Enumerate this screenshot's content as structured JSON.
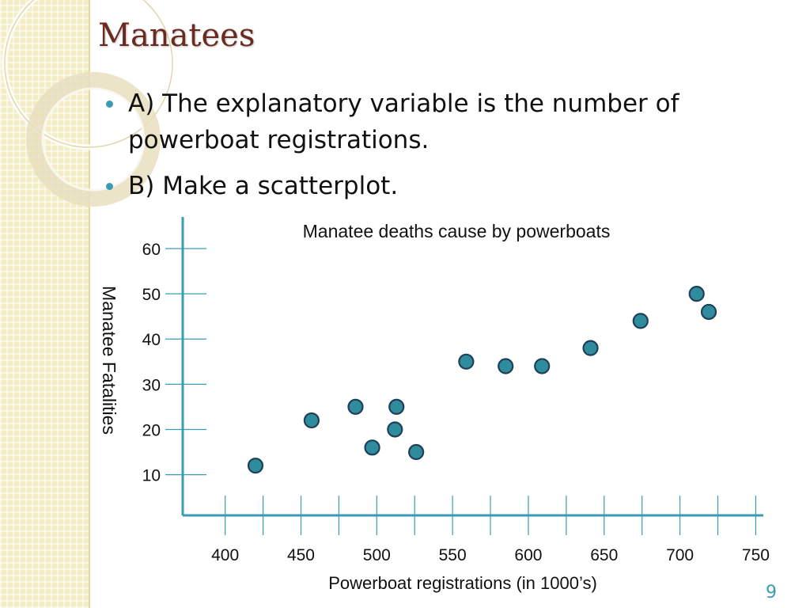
{
  "slide": {
    "title": "Manatees",
    "bullets": [
      "A) The explanatory variable is the number of powerboat registrations.",
      "B) Make a scatterplot."
    ],
    "page_number": "9",
    "colors": {
      "title": "#6b2a1f",
      "accent": "#3a9bb4",
      "sidebar": "#f3ecc4",
      "axis": "#3a9bb4",
      "point_fill": "#2f8c9d",
      "point_stroke": "#1f3f5a"
    }
  },
  "chart_data": {
    "type": "scatter",
    "title": "Manatee deaths cause by powerboats",
    "xlabel": "Powerboat registrations (in 1000’s)",
    "ylabel": "Manatee Fatalities",
    "xlim": [
      372,
      755
    ],
    "ylim": [
      1,
      67
    ],
    "xticks": [
      400,
      450,
      500,
      550,
      600,
      650,
      700,
      750
    ],
    "yticks": [
      10,
      20,
      30,
      40,
      50,
      60
    ],
    "grid": false,
    "points": [
      {
        "x": 420,
        "y": 12
      },
      {
        "x": 457,
        "y": 22
      },
      {
        "x": 486,
        "y": 25
      },
      {
        "x": 497,
        "y": 16
      },
      {
        "x": 512,
        "y": 20
      },
      {
        "x": 513,
        "y": 25
      },
      {
        "x": 526,
        "y": 15
      },
      {
        "x": 559,
        "y": 35
      },
      {
        "x": 585,
        "y": 34
      },
      {
        "x": 609,
        "y": 34
      },
      {
        "x": 641,
        "y": 38
      },
      {
        "x": 674,
        "y": 44
      },
      {
        "x": 711,
        "y": 50
      },
      {
        "x": 719,
        "y": 46
      }
    ]
  }
}
